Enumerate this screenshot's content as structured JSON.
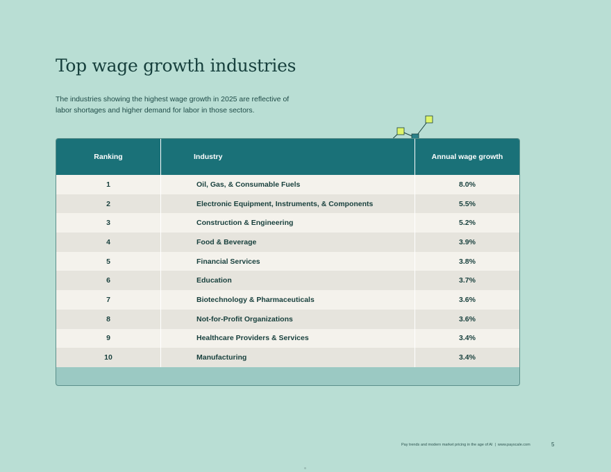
{
  "page": {
    "title": "Top wage growth industries",
    "intro": "The industries showing the highest wage growth in 2025 are reflective of labor shortages and higher demand for labor in those sectors."
  },
  "table": {
    "headers": {
      "ranking": "Ranking",
      "industry": "Industry",
      "growth": "Annual wage growth"
    },
    "rows": [
      {
        "rank": "1",
        "industry": "Oil, Gas, & Consumable Fuels",
        "growth": "8.0%"
      },
      {
        "rank": "2",
        "industry": "Electronic Equipment, Instruments, & Components",
        "growth": "5.5%"
      },
      {
        "rank": "3",
        "industry": "Construction & Engineering",
        "growth": "5.2%"
      },
      {
        "rank": "4",
        "industry": "Food & Beverage",
        "growth": "3.9%"
      },
      {
        "rank": "5",
        "industry": "Financial Services",
        "growth": "3.8%"
      },
      {
        "rank": "6",
        "industry": "Education",
        "growth": "3.7%"
      },
      {
        "rank": "7",
        "industry": "Biotechnology & Pharmaceuticals",
        "growth": "3.6%"
      },
      {
        "rank": "8",
        "industry": "Not-for-Profit Organizations",
        "growth": "3.6%"
      },
      {
        "rank": "9",
        "industry": "Healthcare Providers & Services",
        "growth": "3.4%"
      },
      {
        "rank": "10",
        "industry": "Manufacturing",
        "growth": "3.4%"
      }
    ]
  },
  "footer": {
    "report": "Pay trends and modern market pricing in the age of AI",
    "separator": "|",
    "site": "www.payscale.com",
    "page_number": "5"
  },
  "colors": {
    "background": "#b9ded4",
    "header": "#1a7178",
    "row_light": "#f4f2ec",
    "row_dark": "#e6e4dd",
    "text": "#173f3c",
    "accent_purple": "#b8a6f2",
    "accent_lime": "#dff56a",
    "accent_teal": "#2b8189"
  }
}
